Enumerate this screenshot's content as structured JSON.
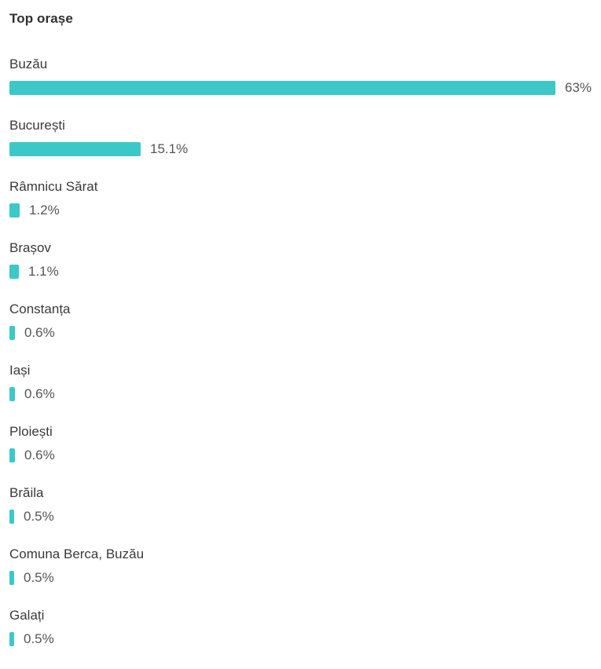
{
  "chart_data": {
    "type": "bar",
    "orientation": "horizontal",
    "title": "Top orașe",
    "categories": [
      "Buzău",
      "București",
      "Râmnicu Sărat",
      "Brașov",
      "Constanța",
      "Iași",
      "Ploiești",
      "Brăila",
      "Comuna Berca, Buzău",
      "Galați"
    ],
    "values": [
      63,
      15.1,
      1.2,
      1.1,
      0.6,
      0.6,
      0.6,
      0.5,
      0.5,
      0.5
    ],
    "value_labels": [
      "63%",
      "15.1%",
      "1.2%",
      "1.1%",
      "0.6%",
      "0.6%",
      "0.6%",
      "0.5%",
      "0.5%",
      "0.5%"
    ],
    "xlim": [
      0,
      63
    ],
    "grid": false,
    "legend": "none",
    "bar_color": "#3cc8c8"
  }
}
